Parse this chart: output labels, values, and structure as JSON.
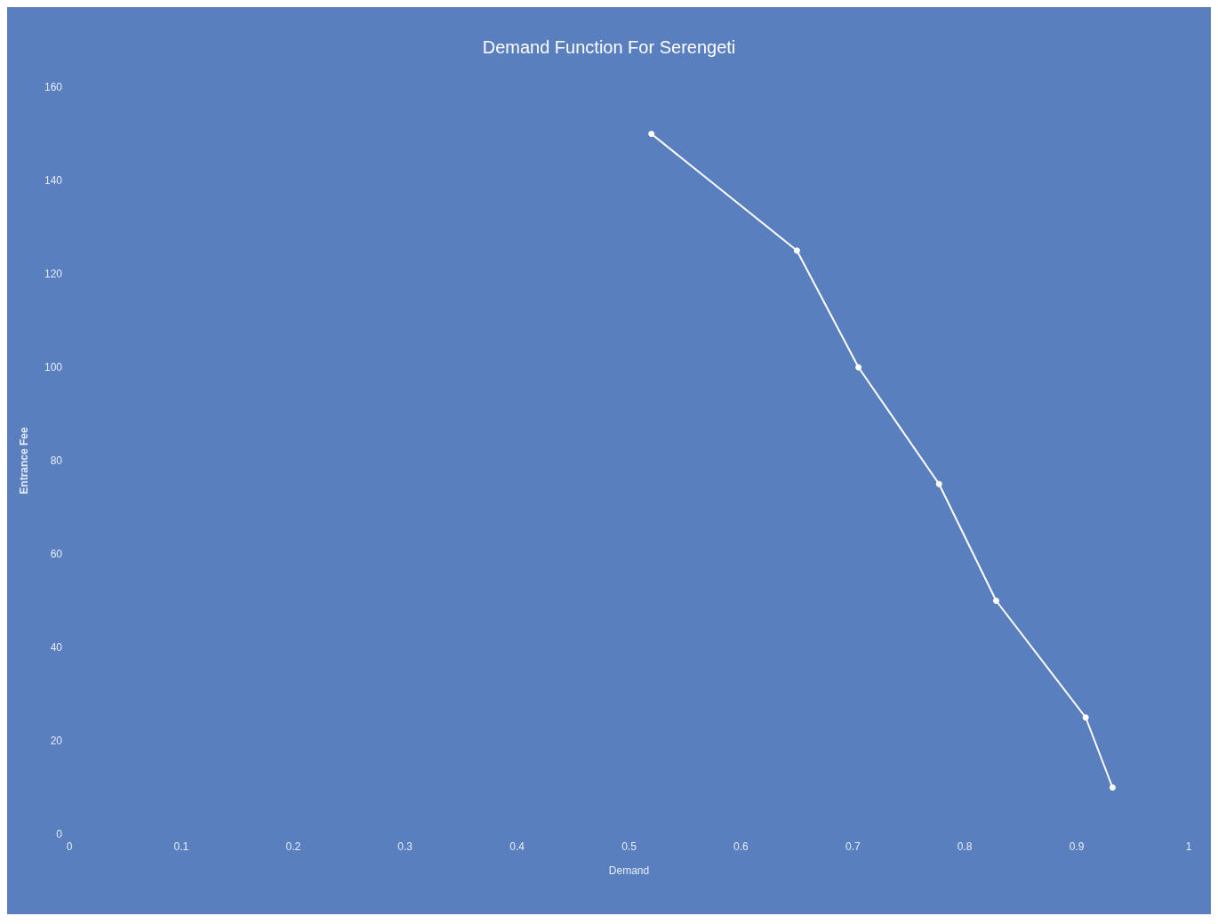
{
  "chart_data": {
    "type": "line",
    "title": "Demand Function For Serengeti",
    "xlabel": "Demand",
    "ylabel": "Entrance Fee",
    "x": [
      0.52,
      0.65,
      0.705,
      0.777,
      0.828,
      0.908,
      0.932
    ],
    "series": [
      {
        "color": "#ffffff",
        "values": [
          150,
          125,
          100,
          75,
          50,
          25,
          10
        ]
      }
    ],
    "xlim": [
      0,
      1
    ],
    "xticks": [
      0,
      0.1,
      0.2,
      0.3,
      0.4,
      0.5,
      0.6,
      0.7,
      0.8,
      0.9,
      1
    ],
    "ylim": [
      0,
      160
    ],
    "yticks": [
      0,
      20,
      40,
      60,
      80,
      100,
      120,
      140,
      160
    ],
    "grid": false,
    "marker": "circle",
    "line_style": "solid"
  }
}
